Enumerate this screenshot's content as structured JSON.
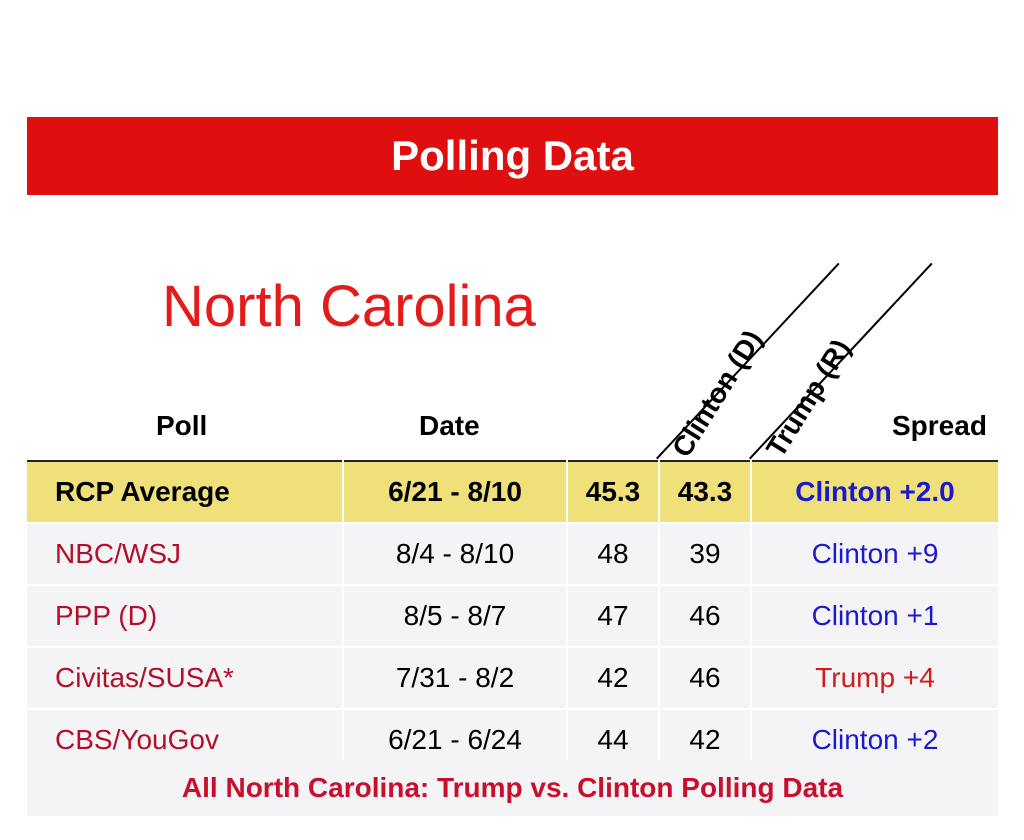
{
  "header": {
    "title": "Polling Data"
  },
  "state": "North Carolina",
  "columns": {
    "poll": "Poll",
    "date": "Date",
    "clinton": "Clinton (D)",
    "trump": "Trump (R)",
    "spread": "Spread"
  },
  "average": {
    "poll": "RCP Average",
    "date": "6/21 - 8/10",
    "clinton": "45.3",
    "trump": "43.3",
    "spread": "Clinton +2.0",
    "spread_color": "#1a1acc"
  },
  "polls": [
    {
      "poll": "NBC/WSJ",
      "date": "8/4 - 8/10",
      "clinton": "48",
      "trump": "39",
      "spread": "Clinton +9",
      "spread_color": "#1a1acc"
    },
    {
      "poll": "PPP (D)",
      "date": "8/5 - 8/7",
      "clinton": "47",
      "trump": "46",
      "spread": "Clinton +1",
      "spread_color": "#1a1acc"
    },
    {
      "poll": "Civitas/SUSA*",
      "date": "7/31 - 8/2",
      "clinton": "42",
      "trump": "46",
      "spread": "Trump +4",
      "spread_color": "#d01c1c"
    },
    {
      "poll": "CBS/YouGov",
      "date": "6/21 - 6/24",
      "clinton": "44",
      "trump": "42",
      "spread": "Clinton +2",
      "spread_color": "#1a1acc"
    }
  ],
  "footer": {
    "link": "All North Carolina: Trump vs. Clinton Polling Data"
  },
  "colors": {
    "banner": "#e00f0f",
    "state_title": "#e41b1b",
    "average_row": "#efe07a",
    "row_bg": "#f4f4f6",
    "poll_name": "#b2102a"
  }
}
